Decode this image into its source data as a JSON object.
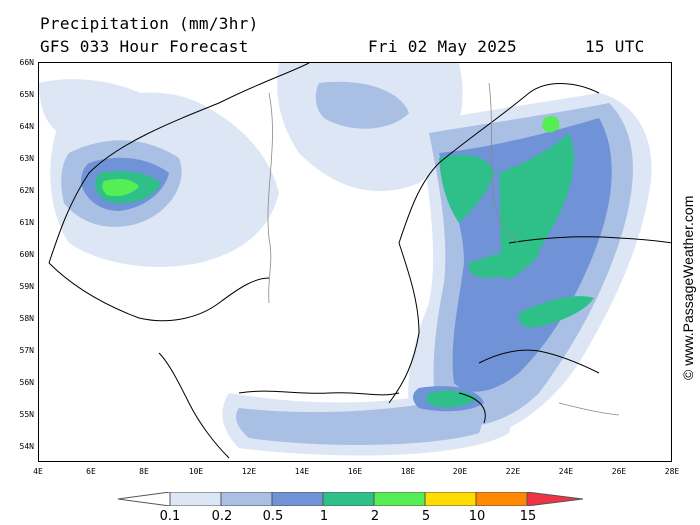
{
  "header": {
    "title": "Precipitation (mm/3hr)",
    "forecast": "GFS 033 Hour Forecast",
    "date": "Fri 02 May 2025",
    "time": "15 UTC"
  },
  "credit": "© www.PassageWeather.com",
  "lat_labels": [
    "66N",
    "65N",
    "64N",
    "63N",
    "62N",
    "61N",
    "60N",
    "59N",
    "58N",
    "57N",
    "56N",
    "55N",
    "54N"
  ],
  "lon_labels": [
    "4E",
    "6E",
    "8E",
    "10E",
    "12E",
    "14E",
    "16E",
    "18E",
    "20E",
    "22E",
    "24E",
    "26E",
    "28E"
  ],
  "legend": {
    "labels": [
      "0.1",
      "0.2",
      "0.5",
      "1",
      "2",
      "5",
      "10",
      "15"
    ],
    "colors": [
      "#ffffff",
      "#dde6f5",
      "#a9bfe3",
      "#6f93d6",
      "#2fbf88",
      "#55ee55",
      "#ffdd00",
      "#ff8800",
      "#ee3344"
    ]
  },
  "map": {
    "region": "Scandinavia and Baltic Sea",
    "land_color": "#ffffff",
    "coast_color": "#000000",
    "border_color": "#888888"
  }
}
